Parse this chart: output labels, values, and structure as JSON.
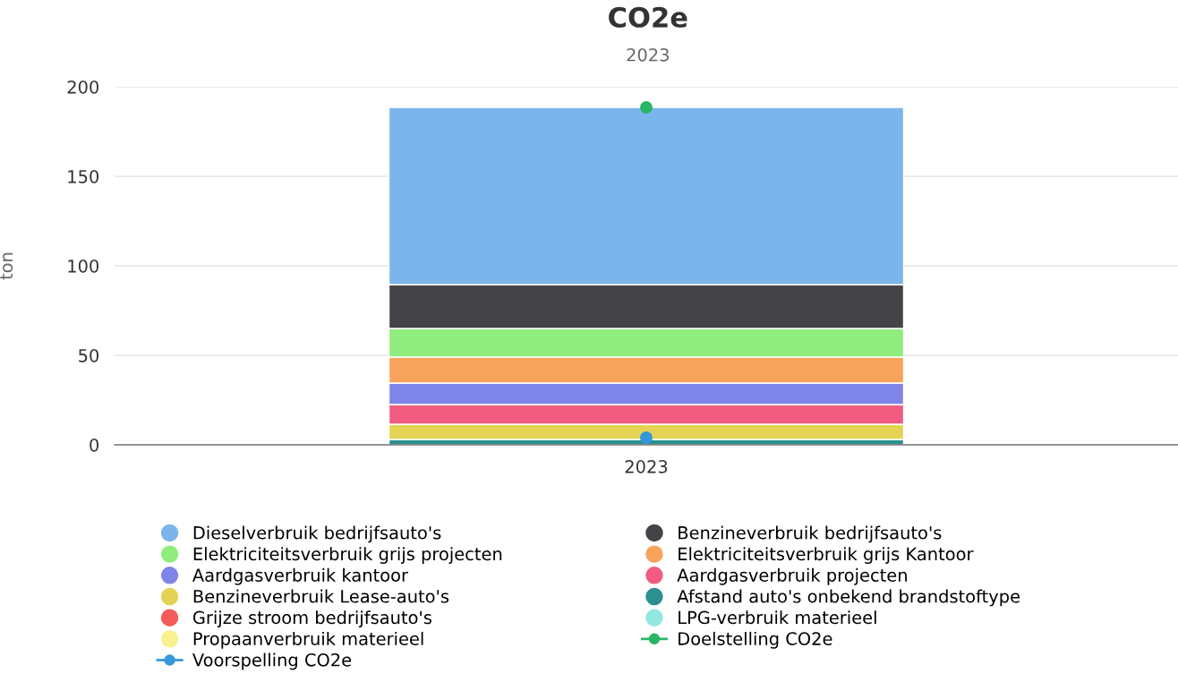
{
  "chart_data": {
    "type": "bar",
    "title": "CO2e",
    "subtitle": "2023",
    "ylabel": "ton",
    "categories": [
      "2023"
    ],
    "stacked": true,
    "ylim": [
      0,
      200
    ],
    "yticks": [
      0,
      50,
      100,
      150,
      200
    ],
    "grid": "y",
    "legend": "bottom",
    "series": [
      {
        "name": "Propaanverbruik materieel",
        "color": "#f7f28f",
        "values": [
          null
        ]
      },
      {
        "name": "LPG-verbruik materieel",
        "color": "#91e8e1",
        "values": [
          null
        ]
      },
      {
        "name": "Grijze stroom bedrijfsauto's",
        "color": "#f45b5b",
        "values": [
          null
        ]
      },
      {
        "name": "Afstand auto's onbekend brandstoftype",
        "color": "#2b908f",
        "values": [
          3
        ]
      },
      {
        "name": "Benzineverbruik Lease-auto's",
        "color": "#e4d354",
        "values": [
          8.5
        ]
      },
      {
        "name": "Aardgasverbruik projecten",
        "color": "#f15c80",
        "values": [
          11
        ]
      },
      {
        "name": "Aardgasverbruik kantoor",
        "color": "#8085e9",
        "values": [
          12
        ]
      },
      {
        "name": "Elektriciteitsverbruik grijs Kantoor",
        "color": "#f7a35c",
        "values": [
          14.5
        ]
      },
      {
        "name": "Elektriciteitsverbruik grijs projecten",
        "color": "#90ed7d",
        "values": [
          16
        ]
      },
      {
        "name": "Benzineverbruik bedrijfsauto's",
        "color": "#434348",
        "values": [
          24.5
        ]
      },
      {
        "name": "Dieselverbruik bedrijfsauto's",
        "color": "#7cb5ec",
        "values": [
          99
        ]
      },
      {
        "name": "Doelstelling CO2e",
        "type": "line",
        "marker": "circle",
        "color": "#2bb566",
        "values": [
          188.5
        ]
      },
      {
        "name": "Voorspelling CO2e",
        "type": "line",
        "marker": "circle",
        "color": "#3498db",
        "values": [
          4
        ]
      }
    ]
  }
}
